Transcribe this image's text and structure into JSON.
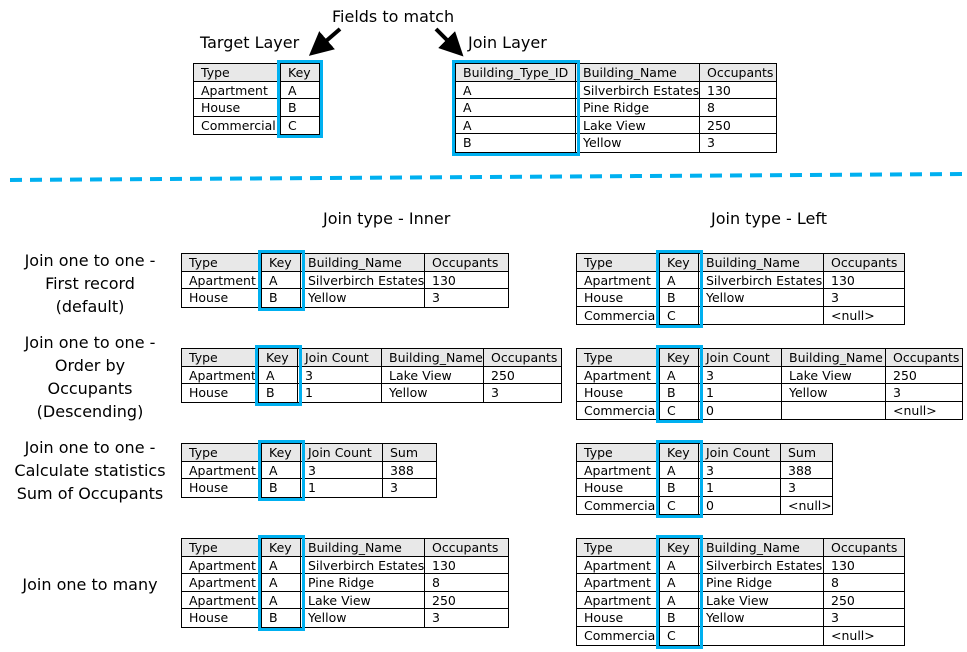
{
  "colors": {
    "accent": "#00b0f0",
    "header_bg": "#e8e8e8"
  },
  "top": {
    "fields_to_match": "Fields to match",
    "target_layer_title": "Target Layer",
    "join_layer_title": "Join Layer"
  },
  "sections": {
    "inner_title": "Join type - Inner",
    "left_title": "Join type - Left"
  },
  "row_labels": [
    [
      "Join one to one -",
      "First record",
      "(default)"
    ],
    [
      "Join one to one -",
      "Order by",
      "Occupants",
      "(Descending)"
    ],
    [
      "Join one to one -",
      "Calculate statistics",
      "Sum of Occupants"
    ],
    [
      "Join one to many"
    ]
  ],
  "tables": {
    "target": {
      "columns": [
        "Type",
        "Key"
      ],
      "key_col": 1,
      "rows": [
        [
          "Apartment",
          "A"
        ],
        [
          "House",
          "B"
        ],
        [
          "Commercial",
          "C"
        ]
      ]
    },
    "join": {
      "columns": [
        "Building_Type_ID",
        "Building_Name",
        "Occupants"
      ],
      "key_col": 0,
      "rows": [
        [
          "A",
          "Silverbirch Estates",
          "130"
        ],
        [
          "A",
          "Pine Ridge",
          "8"
        ],
        [
          "A",
          "Lake View",
          "250"
        ],
        [
          "B",
          "Yellow",
          "3"
        ]
      ]
    },
    "inner1": {
      "columns": [
        "Type",
        "Key",
        "Building_Name",
        "Occupants"
      ],
      "key_col": 1,
      "rows": [
        [
          "Apartment",
          "A",
          "Silverbirch Estates",
          "130"
        ],
        [
          "House",
          "B",
          "Yellow",
          "3"
        ]
      ]
    },
    "inner2": {
      "columns": [
        "Type",
        "Key",
        "Join Count",
        "Building_Name",
        "Occupants"
      ],
      "key_col": 1,
      "rows": [
        [
          "Apartment",
          "A",
          "3",
          "Lake View",
          "250"
        ],
        [
          "House",
          "B",
          "1",
          "Yellow",
          "3"
        ]
      ]
    },
    "inner3": {
      "columns": [
        "Type",
        "Key",
        "Join Count",
        "Sum"
      ],
      "key_col": 1,
      "rows": [
        [
          "Apartment",
          "A",
          "3",
          "388"
        ],
        [
          "House",
          "B",
          "1",
          "3"
        ]
      ]
    },
    "inner4": {
      "columns": [
        "Type",
        "Key",
        "Building_Name",
        "Occupants"
      ],
      "key_col": 1,
      "rows": [
        [
          "Apartment",
          "A",
          "Silverbirch Estates",
          "130"
        ],
        [
          "Apartment",
          "A",
          "Pine Ridge",
          "8"
        ],
        [
          "Apartment",
          "A",
          "Lake View",
          "250"
        ],
        [
          "House",
          "B",
          "Yellow",
          "3"
        ]
      ]
    },
    "left1": {
      "columns": [
        "Type",
        "Key",
        "Building_Name",
        "Occupants"
      ],
      "key_col": 1,
      "rows": [
        [
          "Apartment",
          "A",
          "Silverbirch Estates",
          "130"
        ],
        [
          "House",
          "B",
          "Yellow",
          "3"
        ],
        [
          "Commercial",
          "C",
          "",
          "<null>"
        ]
      ]
    },
    "left2": {
      "columns": [
        "Type",
        "Key",
        "Join Count",
        "Building_Name",
        "Occupants"
      ],
      "key_col": 1,
      "rows": [
        [
          "Apartment",
          "A",
          "3",
          "Lake View",
          "250"
        ],
        [
          "House",
          "B",
          "1",
          "Yellow",
          "3"
        ],
        [
          "Commercial",
          "C",
          "0",
          "",
          "<null>"
        ]
      ]
    },
    "left3": {
      "columns": [
        "Type",
        "Key",
        "Join Count",
        "Sum"
      ],
      "key_col": 1,
      "rows": [
        [
          "Apartment",
          "A",
          "3",
          "388"
        ],
        [
          "House",
          "B",
          "1",
          "3"
        ],
        [
          "Commercial",
          "C",
          "0",
          "<null>"
        ]
      ]
    },
    "left4": {
      "columns": [
        "Type",
        "Key",
        "Building_Name",
        "Occupants"
      ],
      "key_col": 1,
      "rows": [
        [
          "Apartment",
          "A",
          "Silverbirch Estates",
          "130"
        ],
        [
          "Apartment",
          "A",
          "Pine Ridge",
          "8"
        ],
        [
          "Apartment",
          "A",
          "Lake View",
          "250"
        ],
        [
          "House",
          "B",
          "Yellow",
          "3"
        ],
        [
          "Commercial",
          "C",
          "",
          "<null>"
        ]
      ]
    }
  }
}
